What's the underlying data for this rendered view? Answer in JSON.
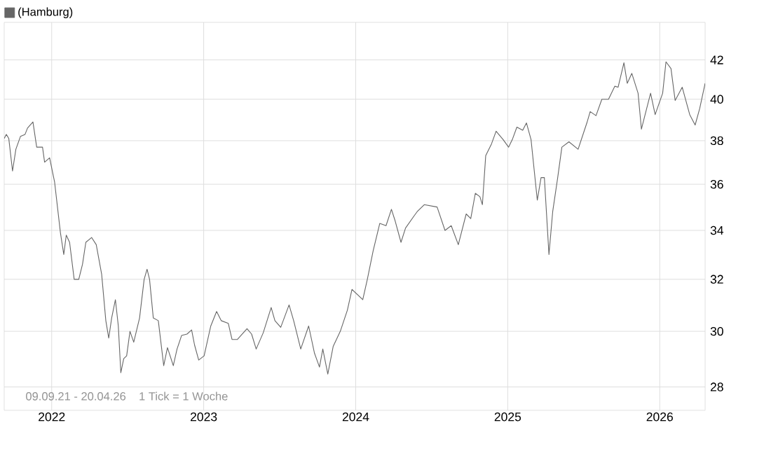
{
  "chart_data": {
    "type": "line",
    "log": true,
    "grid": true,
    "legend": "top left",
    "marker": "none",
    "line_style": "solid",
    "xlim": [
      "2021-09-09",
      "2026-04-20"
    ],
    "xticks": [
      "2022",
      "2023",
      "2024",
      "2025",
      "2026"
    ],
    "ylim": [
      27.2,
      44
    ],
    "yticks": [
      28,
      30,
      32,
      34,
      36,
      38,
      40,
      42
    ],
    "annotations": [
      "09.09.21 - 20.04.26",
      "1 Tick = 1 Woche"
    ],
    "series": [
      {
        "name": "(Hamburg)",
        "color": "#666666",
        "x": [
          "2021-09-09",
          "2021-09-14",
          "2021-09-20",
          "2021-09-29",
          "2021-10-07",
          "2021-10-18",
          "2021-10-29",
          "2021-11-04",
          "2021-11-17",
          "2021-11-26",
          "2021-12-10",
          "2021-12-15",
          "2021-12-27",
          "2022-01-08",
          "2022-01-22",
          "2022-01-30",
          "2022-02-05",
          "2022-02-13",
          "2022-02-24",
          "2022-03-07",
          "2022-03-16",
          "2022-03-24",
          "2022-04-07",
          "2022-04-18",
          "2022-05-01",
          "2022-05-11",
          "2022-05-18",
          "2022-05-25",
          "2022-06-03",
          "2022-06-10",
          "2022-06-16",
          "2022-06-23",
          "2022-06-30",
          "2022-07-08",
          "2022-07-17",
          "2022-07-31",
          "2022-08-11",
          "2022-08-18",
          "2022-08-24",
          "2022-09-02",
          "2022-09-14",
          "2022-09-27",
          "2022-10-06",
          "2022-10-20",
          "2022-10-29",
          "2022-11-09",
          "2022-11-22",
          "2022-12-03",
          "2022-12-10",
          "2022-12-20",
          "2023-01-02",
          "2023-01-18",
          "2023-02-01",
          "2023-02-12",
          "2023-03-01",
          "2023-03-10",
          "2023-03-23",
          "2023-04-15",
          "2023-04-26",
          "2023-05-07",
          "2023-05-24",
          "2023-06-12",
          "2023-06-21",
          "2023-07-05",
          "2023-07-25",
          "2023-08-05",
          "2023-08-22",
          "2023-09-10",
          "2023-09-24",
          "2023-10-06",
          "2023-10-14",
          "2023-10-26",
          "2023-11-08",
          "2023-11-25",
          "2023-12-12",
          "2023-12-23",
          "2024-01-18",
          "2024-01-29",
          "2024-02-12",
          "2024-02-28",
          "2024-03-14",
          "2024-03-27",
          "2024-04-05",
          "2024-04-19",
          "2024-04-30",
          "2024-05-20",
          "2024-05-28",
          "2024-06-14",
          "2024-07-15",
          "2024-08-03",
          "2024-08-18",
          "2024-09-04",
          "2024-09-23",
          "2024-10-04",
          "2024-10-15",
          "2024-10-26",
          "2024-11-01",
          "2024-11-09",
          "2024-11-23",
          "2024-12-04",
          "2024-12-21",
          "2025-01-03",
          "2025-01-12",
          "2025-01-23",
          "2025-02-06",
          "2025-02-15",
          "2025-02-26",
          "2025-03-13",
          "2025-03-22",
          "2025-03-30",
          "2025-04-10",
          "2025-04-19",
          "2025-05-01",
          "2025-05-11",
          "2025-05-28",
          "2025-06-19",
          "2025-07-10",
          "2025-07-18",
          "2025-08-01",
          "2025-08-15",
          "2025-08-31",
          "2025-09-15",
          "2025-09-23",
          "2025-10-07",
          "2025-10-15",
          "2025-10-26",
          "2025-11-10",
          "2025-11-18",
          "2025-12-10",
          "2025-12-21",
          "2026-01-08",
          "2026-01-16",
          "2026-01-28",
          "2026-02-07",
          "2026-02-24",
          "2026-03-14",
          "2026-03-27",
          "2026-04-07",
          "2026-04-20"
        ],
        "values": [
          38.1,
          38.3,
          38.1,
          36.6,
          37.6,
          38.2,
          38.3,
          38.6,
          38.9,
          37.7,
          37.7,
          37.0,
          37.2,
          36.1,
          33.9,
          33.0,
          33.8,
          33.5,
          32.0,
          32.0,
          32.6,
          33.5,
          33.7,
          33.4,
          32.2,
          30.4,
          29.75,
          30.5,
          31.2,
          30.2,
          28.5,
          29.0,
          29.1,
          30.0,
          29.6,
          30.5,
          32.0,
          32.4,
          32.0,
          30.5,
          30.4,
          28.75,
          29.4,
          28.75,
          29.35,
          29.85,
          29.9,
          30.05,
          29.5,
          28.95,
          29.1,
          30.2,
          30.75,
          30.4,
          30.3,
          29.7,
          29.7,
          30.1,
          29.9,
          29.35,
          29.95,
          30.9,
          30.4,
          30.15,
          31.0,
          30.4,
          29.35,
          30.2,
          29.2,
          28.7,
          29.35,
          28.45,
          29.45,
          30.0,
          30.8,
          31.6,
          31.2,
          32.0,
          33.15,
          34.3,
          34.2,
          34.9,
          34.4,
          33.5,
          34.1,
          34.6,
          34.8,
          35.1,
          35.0,
          34.0,
          34.2,
          33.4,
          34.7,
          34.5,
          35.6,
          35.45,
          35.1,
          37.3,
          37.85,
          38.45,
          38.05,
          37.7,
          38.05,
          38.65,
          38.5,
          38.85,
          38.05,
          35.3,
          36.3,
          36.3,
          33.0,
          34.8,
          36.3,
          37.7,
          37.95,
          37.6,
          38.85,
          39.4,
          39.2,
          40.0,
          40.0,
          40.65,
          40.6,
          41.85,
          40.8,
          41.3,
          40.3,
          38.55,
          40.3,
          39.25,
          40.3,
          41.9,
          41.55,
          39.95,
          40.6,
          39.25,
          38.75,
          39.55,
          40.8
        ]
      }
    ]
  }
}
